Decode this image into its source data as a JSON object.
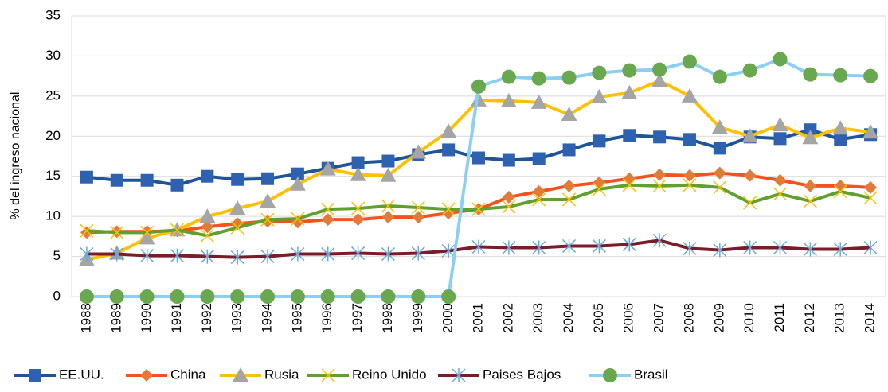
{
  "chart_data": {
    "type": "line",
    "y_label": "% del ingreso nacional",
    "categories": [
      "1988",
      "1989",
      "1990",
      "1991",
      "1992",
      "1993",
      "1994",
      "1995",
      "1996",
      "1997",
      "1998",
      "1999",
      "2000",
      "2001",
      "2002",
      "2003",
      "2004",
      "2005",
      "2006",
      "2007",
      "2008",
      "2009",
      "2010",
      "2011",
      "2012",
      "2013",
      "2014"
    ],
    "ylim": [
      0,
      35
    ],
    "yticks": [
      0,
      5,
      10,
      15,
      20,
      25,
      30,
      35
    ],
    "grid": true,
    "legend": "bottom",
    "series": [
      {
        "name": "EE.UU.",
        "color": "#1f5597",
        "marker": "square",
        "marker_color": "#2e62b0",
        "values": [
          14.9,
          14.5,
          14.5,
          13.9,
          15.0,
          14.6,
          14.7,
          15.3,
          16.0,
          16.7,
          16.9,
          17.7,
          18.3,
          17.3,
          17.0,
          17.2,
          18.3,
          19.4,
          20.1,
          19.9,
          19.6,
          18.5,
          19.9,
          19.7,
          20.8,
          19.6,
          20.2
        ]
      },
      {
        "name": "China",
        "color": "#f4511e",
        "marker": "diamond",
        "marker_color": "#e07b39",
        "values": [
          8.0,
          8.1,
          8.1,
          8.2,
          8.7,
          9.1,
          9.4,
          9.3,
          9.6,
          9.6,
          9.9,
          9.9,
          10.4,
          10.9,
          12.4,
          13.1,
          13.8,
          14.2,
          14.7,
          15.2,
          15.1,
          15.4,
          15.1,
          14.5,
          13.8,
          13.8,
          13.6
        ]
      },
      {
        "name": "Rusia",
        "color": "#ffc000",
        "marker": "triangle",
        "marker_color": "#a5a5a5",
        "values": [
          4.6,
          5.4,
          7.3,
          8.3,
          10.0,
          11.0,
          11.9,
          14.0,
          15.9,
          15.2,
          15.1,
          18.0,
          20.6,
          24.5,
          24.4,
          24.2,
          22.7,
          24.9,
          25.4,
          26.9,
          25.0,
          21.1,
          20.0,
          21.4,
          19.8,
          21.0,
          20.5
        ]
      },
      {
        "name": "Reino Unido",
        "color": "#5fa02e",
        "marker": "x",
        "marker_color": "#ffc000",
        "values": [
          8.2,
          8.0,
          8.0,
          8.3,
          7.6,
          8.6,
          9.6,
          9.7,
          10.9,
          11.0,
          11.3,
          11.1,
          10.9,
          10.9,
          11.2,
          12.1,
          12.1,
          13.4,
          13.9,
          13.8,
          13.9,
          13.6,
          11.7,
          12.8,
          11.9,
          13.1,
          12.3
        ]
      },
      {
        "name": "Paises Bajos",
        "color": "#7b1c2a",
        "marker": "asterisk",
        "marker_color": "#6aa8d8",
        "values": [
          5.3,
          5.3,
          5.1,
          5.1,
          5.0,
          4.9,
          5.0,
          5.3,
          5.3,
          5.4,
          5.3,
          5.4,
          5.7,
          6.2,
          6.1,
          6.1,
          6.3,
          6.3,
          6.5,
          7.0,
          6.0,
          5.8,
          6.1,
          6.1,
          5.9,
          5.9,
          6.1
        ]
      },
      {
        "name": "Brasil",
        "color": "#8ccff5",
        "marker": "circle",
        "marker_color": "#6aa84f",
        "values": [
          0,
          0,
          0,
          0,
          0,
          0,
          0,
          0,
          0,
          0,
          0,
          0,
          0,
          26.2,
          27.4,
          27.2,
          27.3,
          27.9,
          28.2,
          28.3,
          29.3,
          27.4,
          28.2,
          29.6,
          27.7,
          27.6,
          27.5
        ]
      }
    ]
  }
}
